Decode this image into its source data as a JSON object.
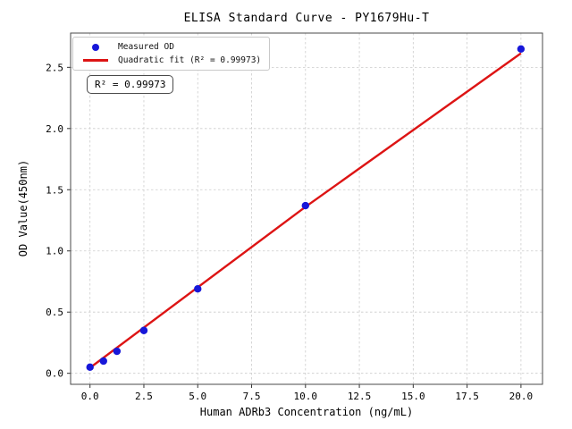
{
  "figure": {
    "background": "#ffffff",
    "spine_color": "#4a4a4a",
    "grid_color": "#cccccc"
  },
  "chart_data": {
    "type": "scatter",
    "title": "ELISA Standard Curve - PY1679Hu-T",
    "xlabel": "Human ADRb3 Concentration (ng/mL)",
    "ylabel": "OD Value(450nm)",
    "xlim": [
      -0.9,
      21.0
    ],
    "ylim": [
      -0.09,
      2.78
    ],
    "grid": "dashed, both axes",
    "x_ticks": [
      {
        "value": 0,
        "label": "0.0"
      },
      {
        "value": 2.5,
        "label": "2.5"
      },
      {
        "value": 5,
        "label": "5.0"
      },
      {
        "value": 7.5,
        "label": "7.5"
      },
      {
        "value": 10,
        "label": "10.0"
      },
      {
        "value": 12.5,
        "label": "12.5"
      },
      {
        "value": 15,
        "label": "15.0"
      },
      {
        "value": 17.5,
        "label": "17.5"
      },
      {
        "value": 20,
        "label": "20.0"
      }
    ],
    "y_ticks": [
      {
        "value": 0,
        "label": "0.0"
      },
      {
        "value": 0.5,
        "label": "0.5"
      },
      {
        "value": 1,
        "label": "1.0"
      },
      {
        "value": 1.5,
        "label": "1.5"
      },
      {
        "value": 2,
        "label": "2.0"
      },
      {
        "value": 2.5,
        "label": "2.5"
      }
    ],
    "series": [
      {
        "name": "Measured OD",
        "type": "scatter",
        "marker": "circle",
        "color": "#1717d9",
        "points": [
          {
            "x": 0,
            "y": 0.05
          },
          {
            "x": 0.625,
            "y": 0.1
          },
          {
            "x": 1.25,
            "y": 0.18
          },
          {
            "x": 2.5,
            "y": 0.35
          },
          {
            "x": 5,
            "y": 0.69
          },
          {
            "x": 10,
            "y": 1.37
          },
          {
            "x": 20,
            "y": 2.65
          }
        ]
      },
      {
        "name": "Quadratic fit (R² = 0.99973)",
        "type": "line",
        "color": "#dd1414",
        "points": [
          {
            "x": 0,
            "y": 0.045
          },
          {
            "x": 10,
            "y": 1.36
          },
          {
            "x": 20,
            "y": 2.615
          }
        ]
      }
    ],
    "legend": {
      "position": "upper-left",
      "items": [
        {
          "marker": "dot",
          "color": "#1717d9",
          "label": "Measured OD"
        },
        {
          "marker": "line",
          "color": "#dd1414",
          "label": "Quadratic fit (R² = 0.99973)"
        }
      ]
    },
    "annotation": {
      "text": "R² = 0.99973"
    },
    "r_squared": "0.99973"
  }
}
